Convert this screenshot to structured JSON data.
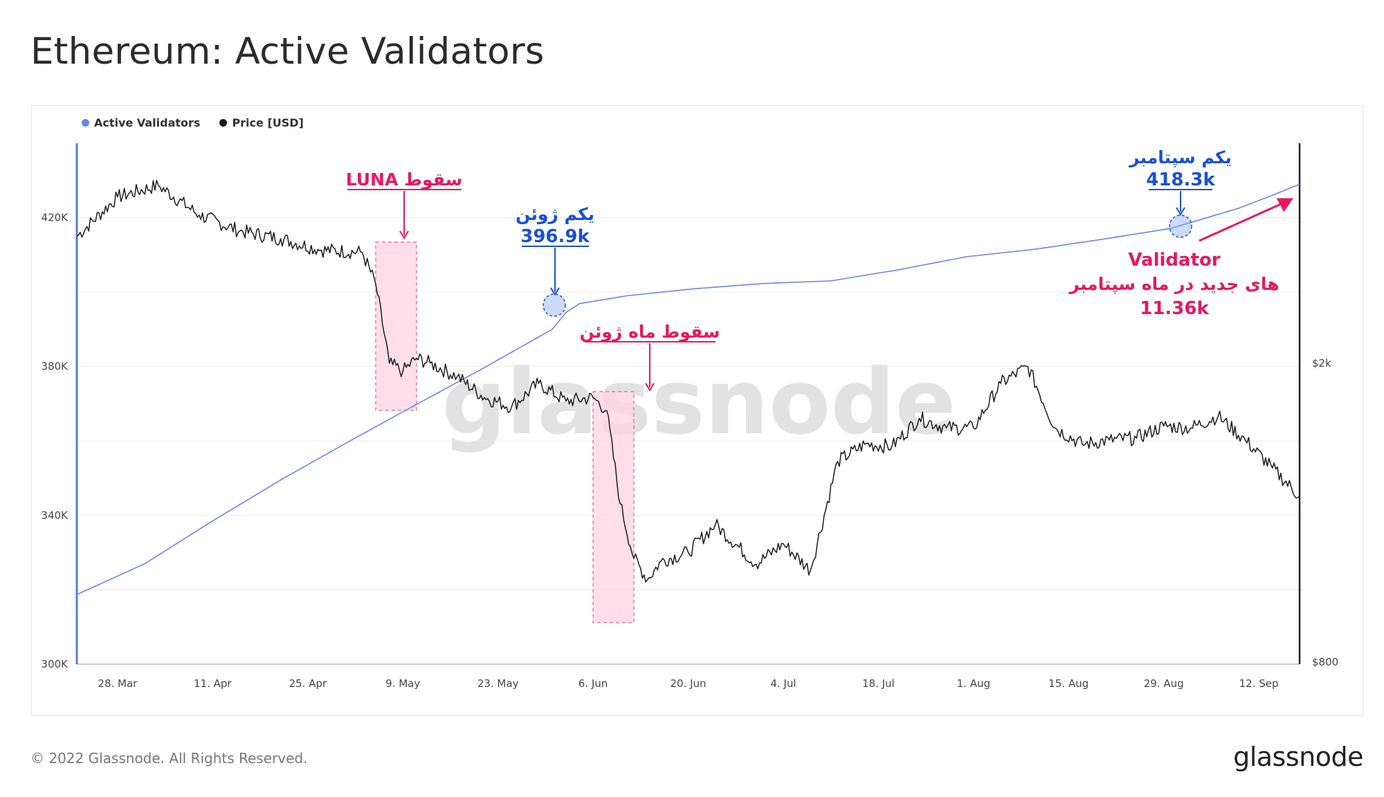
{
  "title": "Ethereum: Active Validators",
  "footer": {
    "copyright": "© 2022 Glassnode. All Rights Reserved.",
    "brand": "glassnode"
  },
  "watermark": "glassnode",
  "colors": {
    "validators": "#6b84e8",
    "price": "#1a1a1a",
    "annotation_red": "#e8175d",
    "annotation_blue": "#1a4fd8",
    "highlight_fill": "#ffd3e3"
  },
  "legend": [
    {
      "label": "Active Validators",
      "color": "#6b84e8"
    },
    {
      "label": "Price [USD]",
      "color": "#1a1a1a"
    }
  ],
  "annotations": {
    "luna": "سقوط LUNA",
    "june_crash": "سقوط ماه ژوئن",
    "june1_label": "یکم ژوئن",
    "june1_value": "396.9k",
    "sept1_label": "یکم سپتامبر",
    "sept1_value": "418.3k",
    "sept_new_1": "Validator",
    "sept_new_2": "های جدید در ماه سپتامبر",
    "sept_new_3": "11.36k"
  },
  "chart_data": {
    "type": "line",
    "x_ticks": [
      "28. Mar",
      "11. Apr",
      "25. Apr",
      "9. May",
      "23. May",
      "6. Jun",
      "20. Jun",
      "4. Jul",
      "18. Jul",
      "1. Aug",
      "15. Aug",
      "29. Aug",
      "12. Sep"
    ],
    "y_left_ticks": [
      "300K",
      "340K",
      "380K",
      "420K"
    ],
    "y_left_range": [
      300000,
      440000
    ],
    "y_right_ticks": [
      "$800",
      "$2k"
    ],
    "y_right_scale": "log",
    "x_range_days": [
      -6,
      174
    ],
    "series": [
      {
        "name": "Active Validators",
        "axis": "left",
        "x_days": [
          -6,
          4,
          14,
          24,
          34,
          44,
          54,
          64,
          66,
          68,
          75,
          85,
          95,
          105,
          115,
          125,
          135,
          145,
          155,
          165,
          170,
          174
        ],
        "values": [
          318700,
          327000,
          338500,
          349500,
          359800,
          369800,
          379700,
          390000,
          394500,
          396900,
          399000,
          400900,
          402300,
          403000,
          406000,
          409500,
          411500,
          414200,
          417100,
          422500,
          426000,
          429000
        ]
      },
      {
        "name": "Price [USD]",
        "axis": "right",
        "x_days": [
          -6,
          0,
          6,
          12,
          18,
          24,
          30,
          36,
          38,
          40,
          42,
          44,
          46,
          50,
          54,
          58,
          62,
          66,
          70,
          72,
          74,
          76,
          78,
          80,
          84,
          88,
          94,
          98,
          102,
          106,
          110,
          114,
          118,
          122,
          126,
          130,
          134,
          138,
          142,
          146,
          150,
          154,
          158,
          162,
          166,
          170,
          174
        ],
        "values": [
          2950,
          3330,
          3450,
          3150,
          3000,
          2930,
          2830,
          2810,
          2550,
          2000,
          1950,
          2030,
          2000,
          1920,
          1800,
          1750,
          1880,
          1780,
          1800,
          1730,
          1300,
          1100,
          1030,
          1090,
          1120,
          1220,
          1080,
          1150,
          1060,
          1480,
          1560,
          1550,
          1690,
          1640,
          1640,
          1880,
          1980,
          1640,
          1560,
          1580,
          1590,
          1650,
          1640,
          1700,
          1580,
          1450,
          1330
        ]
      }
    ],
    "highlights": [
      {
        "label": "سقوط LUNA",
        "start_day": 38,
        "end_day": 44
      },
      {
        "label": "سقوط ماه ژوئن",
        "start_day": 70,
        "end_day": 76
      }
    ]
  }
}
